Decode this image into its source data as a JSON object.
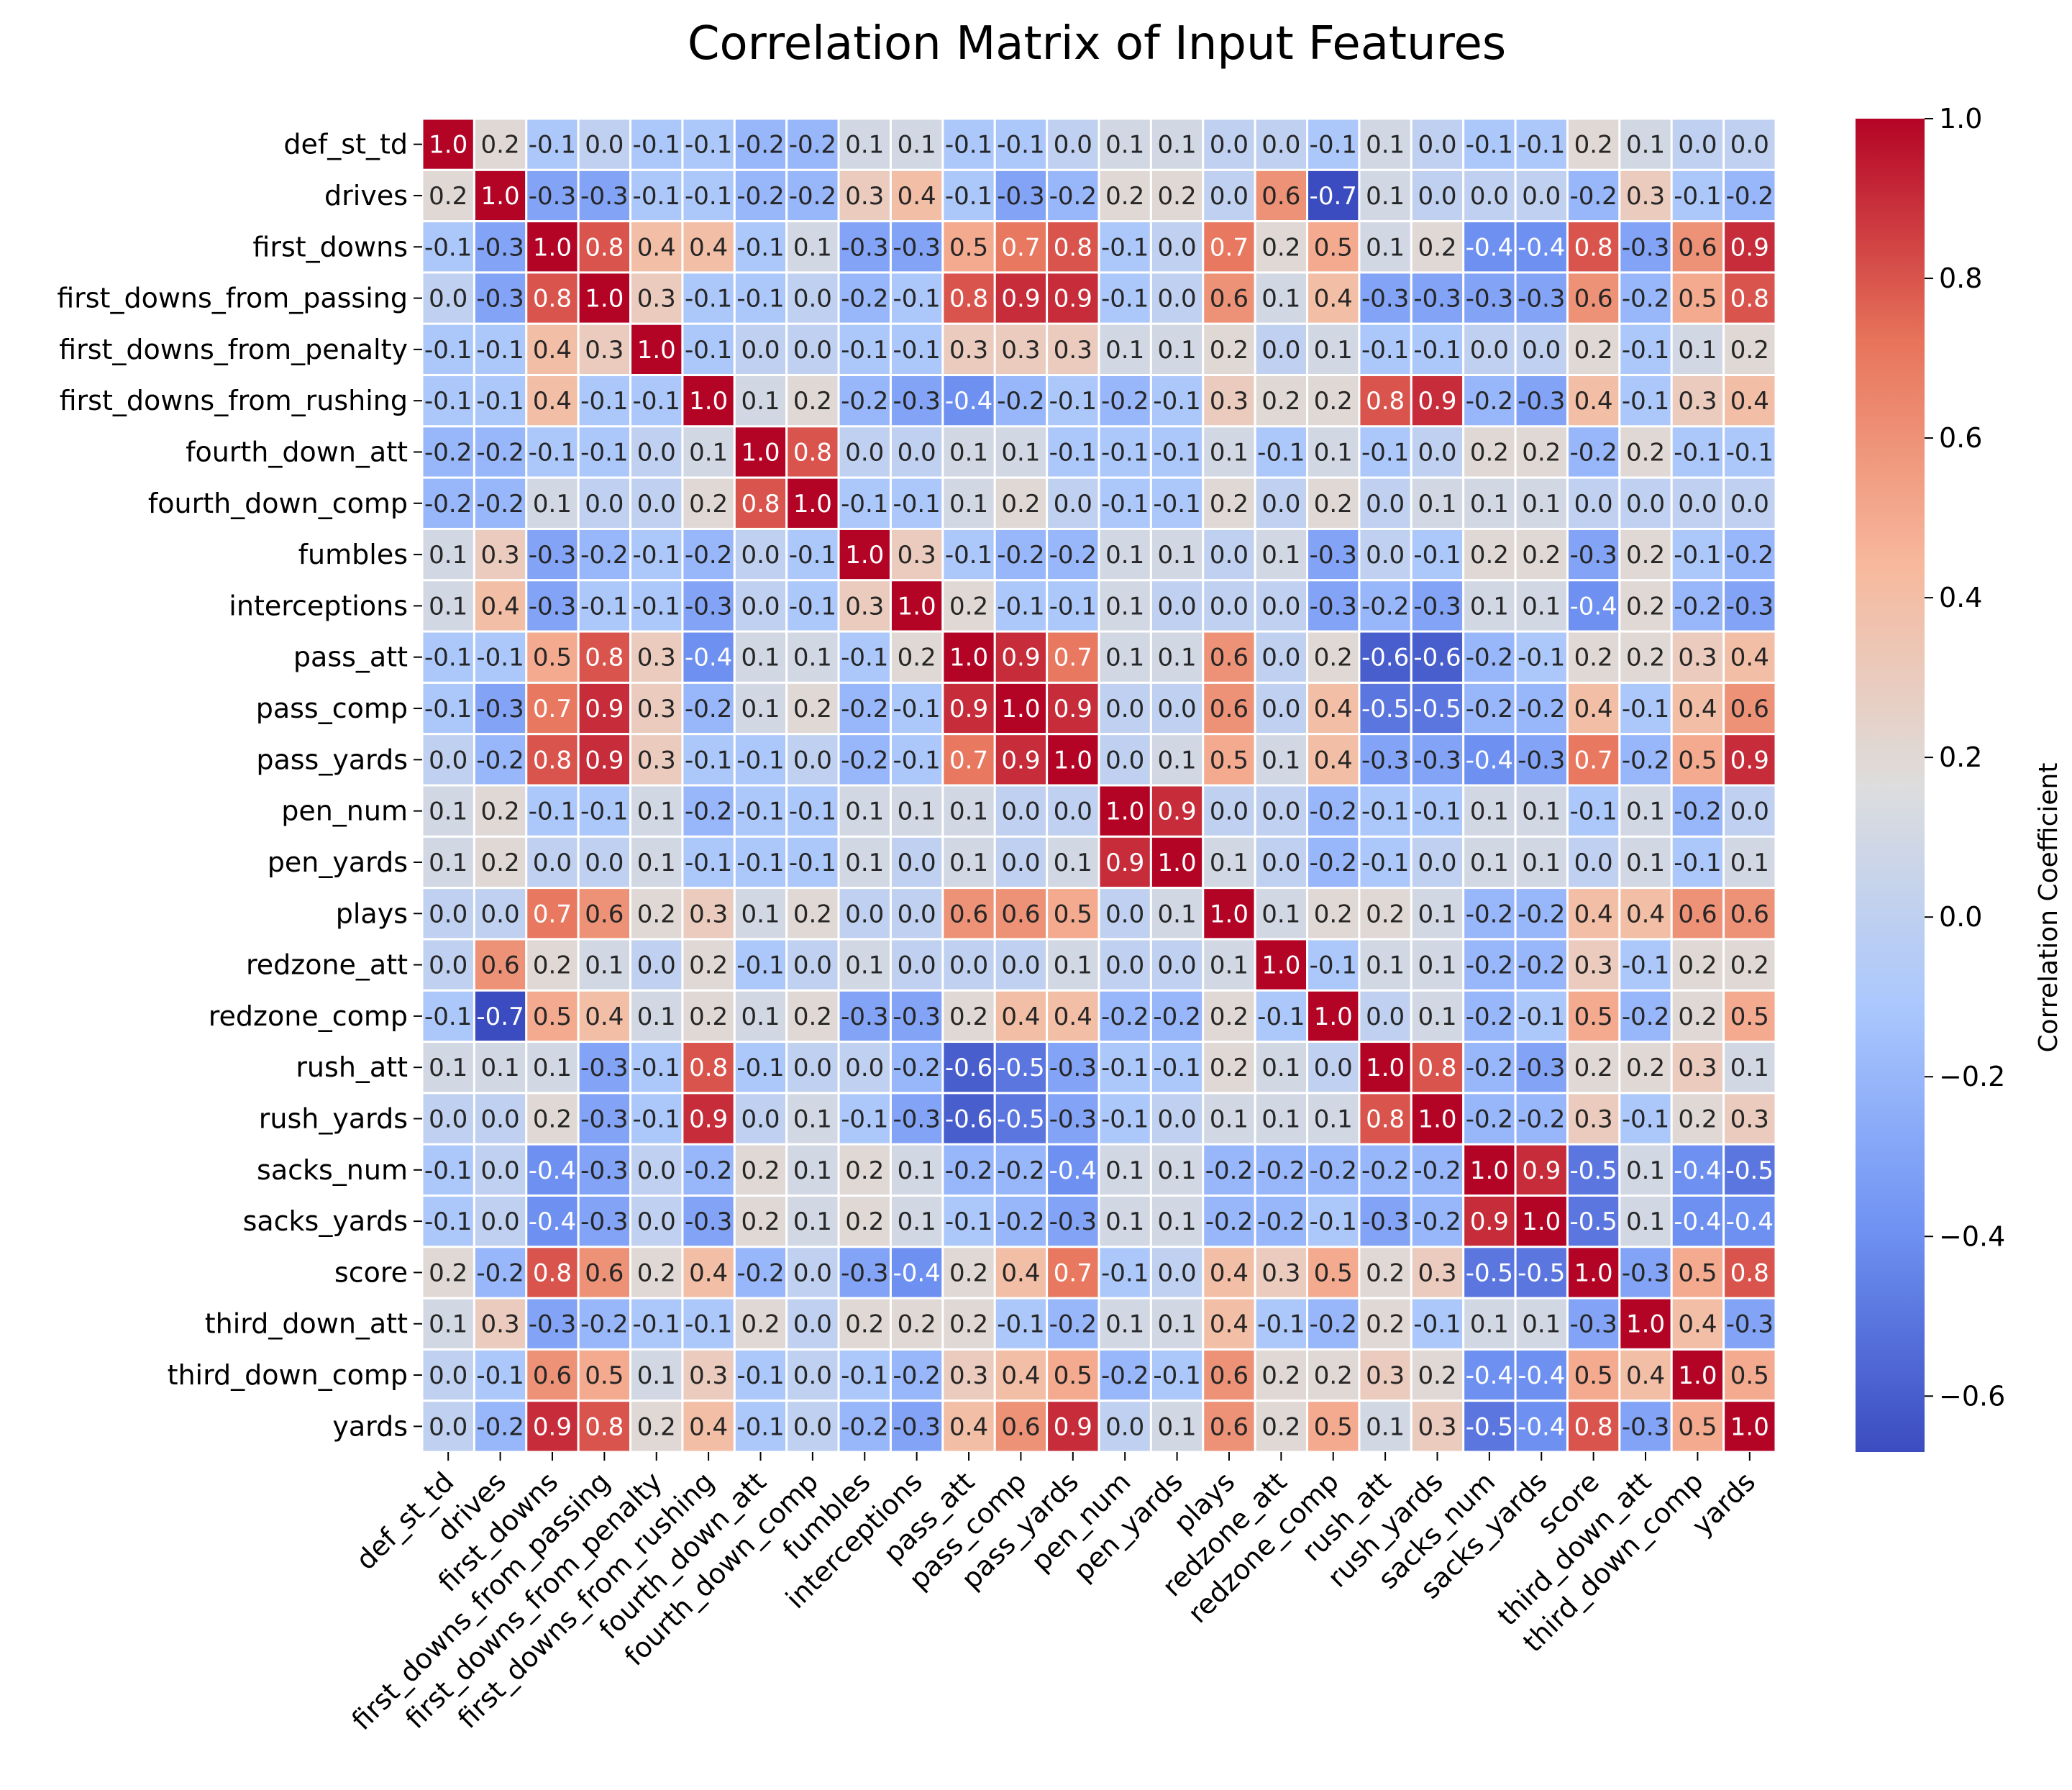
{
  "chart_data": {
    "type": "heatmap",
    "title": "Correlation Matrix of Input Features",
    "colorbar": {
      "label": "Correlation Coefficient",
      "min": -0.67,
      "max": 1.0,
      "ticks": [
        "1.0",
        "0.8",
        "0.6",
        "0.4",
        "0.2",
        "0.0",
        "−0.2",
        "−0.4",
        "−0.6"
      ],
      "tick_values": [
        1.0,
        0.8,
        0.6,
        0.4,
        0.2,
        0.0,
        -0.2,
        -0.4,
        -0.6
      ],
      "colormap": "coolwarm",
      "color_stops": [
        "#3b4cc0",
        "#6f92f3",
        "#aac7fd",
        "#dddddd",
        "#f7b89c",
        "#e7745b",
        "#b40426"
      ]
    },
    "labels": [
      "def_st_td",
      "drives",
      "first_downs",
      "first_downs_from_passing",
      "first_downs_from_penalty",
      "first_downs_from_rushing",
      "fourth_down_att",
      "fourth_down_comp",
      "fumbles",
      "interceptions",
      "pass_att",
      "pass_comp",
      "pass_yards",
      "pen_num",
      "pen_yards",
      "plays",
      "redzone_att",
      "redzone_comp",
      "rush_att",
      "rush_yards",
      "sacks_num",
      "sacks_yards",
      "score",
      "third_down_att",
      "third_down_comp",
      "yards"
    ],
    "matrix": [
      [
        1.0,
        0.2,
        -0.1,
        -0.0,
        -0.1,
        -0.1,
        -0.2,
        -0.2,
        0.1,
        0.1,
        -0.1,
        -0.1,
        -0.0,
        0.1,
        0.1,
        0.0,
        0.0,
        -0.1,
        0.1,
        0.0,
        -0.1,
        -0.1,
        0.2,
        0.1,
        0.0,
        -0.0
      ],
      [
        0.2,
        1.0,
        -0.3,
        -0.3,
        -0.1,
        -0.1,
        -0.2,
        -0.2,
        0.3,
        0.4,
        -0.1,
        -0.3,
        -0.2,
        0.2,
        0.2,
        0.0,
        0.6,
        -0.7,
        0.1,
        -0.0,
        0.0,
        -0.0,
        -0.2,
        0.3,
        -0.1,
        -0.2
      ],
      [
        -0.1,
        -0.3,
        1.0,
        0.8,
        0.4,
        0.4,
        -0.1,
        0.1,
        -0.3,
        -0.3,
        0.5,
        0.7,
        0.8,
        -0.1,
        -0.0,
        0.7,
        0.2,
        0.5,
        0.1,
        0.2,
        -0.4,
        -0.4,
        0.8,
        -0.3,
        0.6,
        0.9
      ],
      [
        -0.0,
        -0.3,
        0.8,
        1.0,
        0.3,
        -0.1,
        -0.1,
        0.0,
        -0.2,
        -0.1,
        0.8,
        0.9,
        0.9,
        -0.1,
        0.0,
        0.6,
        0.1,
        0.4,
        -0.3,
        -0.3,
        -0.3,
        -0.3,
        0.6,
        -0.2,
        0.5,
        0.8
      ],
      [
        -0.1,
        -0.1,
        0.4,
        0.3,
        1.0,
        -0.1,
        -0.0,
        -0.0,
        -0.1,
        -0.1,
        0.3,
        0.3,
        0.3,
        0.1,
        0.1,
        0.2,
        0.0,
        0.1,
        -0.1,
        -0.1,
        0.0,
        0.0,
        0.2,
        -0.1,
        0.1,
        0.2
      ],
      [
        -0.1,
        -0.1,
        0.4,
        -0.1,
        -0.1,
        1.0,
        0.1,
        0.2,
        -0.2,
        -0.3,
        -0.4,
        -0.2,
        -0.1,
        -0.2,
        -0.1,
        0.3,
        0.2,
        0.2,
        0.8,
        0.9,
        -0.2,
        -0.3,
        0.4,
        -0.1,
        0.3,
        0.4
      ],
      [
        -0.2,
        -0.2,
        -0.1,
        -0.1,
        -0.0,
        0.1,
        1.0,
        0.8,
        -0.0,
        0.0,
        0.1,
        0.1,
        -0.1,
        -0.1,
        -0.1,
        0.1,
        -0.1,
        0.1,
        -0.1,
        -0.0,
        0.2,
        0.2,
        -0.2,
        0.2,
        -0.1,
        -0.1
      ],
      [
        -0.2,
        -0.2,
        0.1,
        0.0,
        -0.0,
        0.2,
        0.8,
        1.0,
        -0.1,
        -0.1,
        0.1,
        0.2,
        0.0,
        -0.1,
        -0.1,
        0.2,
        0.0,
        0.2,
        -0.0,
        0.1,
        0.1,
        0.1,
        -0.0,
        0.0,
        0.0,
        0.0
      ],
      [
        0.1,
        0.3,
        -0.3,
        -0.2,
        -0.1,
        -0.2,
        -0.0,
        -0.1,
        1.0,
        0.3,
        -0.1,
        -0.2,
        -0.2,
        0.1,
        0.1,
        -0.0,
        0.1,
        -0.3,
        -0.0,
        -0.1,
        0.2,
        0.2,
        -0.3,
        0.2,
        -0.1,
        -0.2
      ],
      [
        0.1,
        0.4,
        -0.3,
        -0.1,
        -0.1,
        -0.3,
        0.0,
        -0.1,
        0.3,
        1.0,
        0.2,
        -0.1,
        -0.1,
        0.1,
        0.0,
        -0.0,
        0.0,
        -0.3,
        -0.2,
        -0.3,
        0.1,
        0.1,
        -0.4,
        0.2,
        -0.2,
        -0.3
      ],
      [
        -0.1,
        -0.1,
        0.5,
        0.8,
        0.3,
        -0.4,
        0.1,
        0.1,
        -0.1,
        0.2,
        1.0,
        0.9,
        0.7,
        0.1,
        0.1,
        0.6,
        0.0,
        0.2,
        -0.6,
        -0.6,
        -0.2,
        -0.1,
        0.2,
        0.2,
        0.3,
        0.4
      ],
      [
        -0.1,
        -0.3,
        0.7,
        0.9,
        0.3,
        -0.2,
        0.1,
        0.2,
        -0.2,
        -0.1,
        0.9,
        1.0,
        0.9,
        -0.0,
        0.0,
        0.6,
        0.0,
        0.4,
        -0.5,
        -0.5,
        -0.2,
        -0.2,
        0.4,
        -0.1,
        0.4,
        0.6
      ],
      [
        -0.0,
        -0.2,
        0.8,
        0.9,
        0.3,
        -0.1,
        -0.1,
        0.0,
        -0.2,
        -0.1,
        0.7,
        0.9,
        1.0,
        0.0,
        0.1,
        0.5,
        0.1,
        0.4,
        -0.3,
        -0.3,
        -0.4,
        -0.3,
        0.7,
        -0.2,
        0.5,
        0.9
      ],
      [
        0.1,
        0.2,
        -0.1,
        -0.1,
        0.1,
        -0.2,
        -0.1,
        -0.1,
        0.1,
        0.1,
        0.1,
        -0.0,
        0.0,
        1.0,
        0.9,
        -0.0,
        0.0,
        -0.2,
        -0.1,
        -0.1,
        0.1,
        0.1,
        -0.1,
        0.1,
        -0.2,
        -0.0
      ],
      [
        0.1,
        0.2,
        -0.0,
        0.0,
        0.1,
        -0.1,
        -0.1,
        -0.1,
        0.1,
        0.0,
        0.1,
        0.0,
        0.1,
        0.9,
        1.0,
        0.1,
        0.0,
        -0.2,
        -0.1,
        -0.0,
        0.1,
        0.1,
        -0.0,
        0.1,
        -0.1,
        0.1
      ],
      [
        0.0,
        0.0,
        0.7,
        0.6,
        0.2,
        0.3,
        0.1,
        0.2,
        -0.0,
        -0.0,
        0.6,
        0.6,
        0.5,
        -0.0,
        0.1,
        1.0,
        0.1,
        0.2,
        0.2,
        0.1,
        -0.2,
        -0.2,
        0.4,
        0.4,
        0.6,
        0.6
      ],
      [
        0.0,
        0.6,
        0.2,
        0.1,
        0.0,
        0.2,
        -0.1,
        0.0,
        0.1,
        0.0,
        0.0,
        0.0,
        0.1,
        0.0,
        0.0,
        0.1,
        1.0,
        -0.1,
        0.1,
        0.1,
        -0.2,
        -0.2,
        0.3,
        -0.1,
        0.2,
        0.2
      ],
      [
        -0.1,
        -0.7,
        0.5,
        0.4,
        0.1,
        0.2,
        0.1,
        0.2,
        -0.3,
        -0.3,
        0.2,
        0.4,
        0.4,
        -0.2,
        -0.2,
        0.2,
        -0.1,
        1.0,
        -0.0,
        0.1,
        -0.2,
        -0.1,
        0.5,
        -0.2,
        0.2,
        0.5
      ],
      [
        0.1,
        0.1,
        0.1,
        -0.3,
        -0.1,
        0.8,
        -0.1,
        -0.0,
        -0.0,
        -0.2,
        -0.6,
        -0.5,
        -0.3,
        -0.1,
        -0.1,
        0.2,
        0.1,
        -0.0,
        1.0,
        0.8,
        -0.2,
        -0.3,
        0.2,
        0.2,
        0.3,
        0.1
      ],
      [
        0.0,
        -0.0,
        0.2,
        -0.3,
        -0.1,
        0.9,
        -0.0,
        0.1,
        -0.1,
        -0.3,
        -0.6,
        -0.5,
        -0.3,
        -0.1,
        -0.0,
        0.1,
        0.1,
        0.1,
        0.8,
        1.0,
        -0.2,
        -0.2,
        0.3,
        -0.1,
        0.2,
        0.3
      ],
      [
        -0.1,
        0.0,
        -0.4,
        -0.3,
        0.0,
        -0.2,
        0.2,
        0.1,
        0.2,
        0.1,
        -0.2,
        -0.2,
        -0.4,
        0.1,
        0.1,
        -0.2,
        -0.2,
        -0.2,
        -0.2,
        -0.2,
        1.0,
        0.9,
        -0.5,
        0.1,
        -0.4,
        -0.5
      ],
      [
        -0.1,
        -0.0,
        -0.4,
        -0.3,
        0.0,
        -0.3,
        0.2,
        0.1,
        0.2,
        0.1,
        -0.1,
        -0.2,
        -0.3,
        0.1,
        0.1,
        -0.2,
        -0.2,
        -0.1,
        -0.3,
        -0.2,
        0.9,
        1.0,
        -0.5,
        0.1,
        -0.4,
        -0.4
      ],
      [
        0.2,
        -0.2,
        0.8,
        0.6,
        0.2,
        0.4,
        -0.2,
        -0.0,
        -0.3,
        -0.4,
        0.2,
        0.4,
        0.7,
        -0.1,
        -0.0,
        0.4,
        0.3,
        0.5,
        0.2,
        0.3,
        -0.5,
        -0.5,
        1.0,
        -0.3,
        0.5,
        0.8
      ],
      [
        0.1,
        0.3,
        -0.3,
        -0.2,
        -0.1,
        -0.1,
        0.2,
        0.0,
        0.2,
        0.2,
        0.2,
        -0.1,
        -0.2,
        0.1,
        0.1,
        0.4,
        -0.1,
        -0.2,
        0.2,
        -0.1,
        0.1,
        0.1,
        -0.3,
        1.0,
        0.4,
        -0.3
      ],
      [
        0.0,
        -0.1,
        0.6,
        0.5,
        0.1,
        0.3,
        -0.1,
        0.0,
        -0.1,
        -0.2,
        0.3,
        0.4,
        0.5,
        -0.2,
        -0.1,
        0.6,
        0.2,
        0.2,
        0.3,
        0.2,
        -0.4,
        -0.4,
        0.5,
        0.4,
        1.0,
        0.5
      ],
      [
        -0.0,
        -0.2,
        0.9,
        0.8,
        0.2,
        0.4,
        -0.1,
        0.0,
        -0.2,
        -0.3,
        0.4,
        0.6,
        0.9,
        -0.0,
        0.1,
        0.6,
        0.2,
        0.5,
        0.1,
        0.3,
        -0.5,
        -0.4,
        0.8,
        -0.3,
        0.5,
        1.0
      ]
    ]
  }
}
